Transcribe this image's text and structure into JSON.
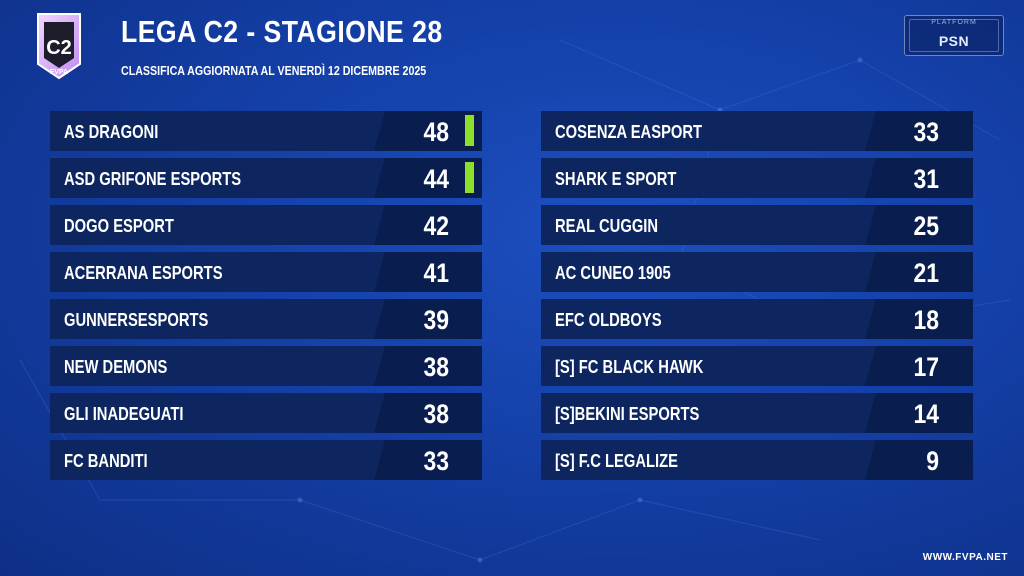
{
  "header": {
    "title": "LEGA C2 - STAGIONE 28",
    "subtitle": "CLASSIFICA AGGIORNATA AL VENERDÌ 12 DICEMBRE 2025",
    "logo_text": "FVPA",
    "logo_mark": "C2"
  },
  "platform": {
    "label": "PLATFORM",
    "value": "PSN"
  },
  "standings_left": [
    {
      "team": "AS DRAGONI",
      "points": "48",
      "highlight": true
    },
    {
      "team": "ASD GRIFONE ESPORTS",
      "points": "44",
      "highlight": true
    },
    {
      "team": "DOGO ESPORT",
      "points": "42",
      "highlight": false
    },
    {
      "team": "ACERRANA ESPORTS",
      "points": "41",
      "highlight": false
    },
    {
      "team": "GUNNERSESPORTS",
      "points": "39",
      "highlight": false
    },
    {
      "team": "NEW DEMONS",
      "points": "38",
      "highlight": false
    },
    {
      "team": "GLI INADEGUATI",
      "points": "38",
      "highlight": false
    },
    {
      "team": "FC BANDITI",
      "points": "33",
      "highlight": false
    }
  ],
  "standings_right": [
    {
      "team": "COSENZA EASPORT",
      "points": "33",
      "highlight": false
    },
    {
      "team": "SHARK E SPORT",
      "points": "31",
      "highlight": false
    },
    {
      "team": "REAL CUGGIN",
      "points": "25",
      "highlight": false
    },
    {
      "team": "AC CUNEO 1905",
      "points": "21",
      "highlight": false
    },
    {
      "team": "EFC OLDBOYS",
      "points": "18",
      "highlight": false
    },
    {
      "team": "[S] FC BLACK HAWK",
      "points": "17",
      "highlight": false
    },
    {
      "team": "[S]BEKINI ESPORTS",
      "points": "14",
      "highlight": false
    },
    {
      "team": "[S] F.C LEGALIZE",
      "points": "9",
      "highlight": false
    }
  ],
  "footer": {
    "url": "WWW.FVPA.NET"
  },
  "colors": {
    "promotion": "#8ddf2a",
    "row": "#0e2660",
    "background": "#1440a8"
  }
}
